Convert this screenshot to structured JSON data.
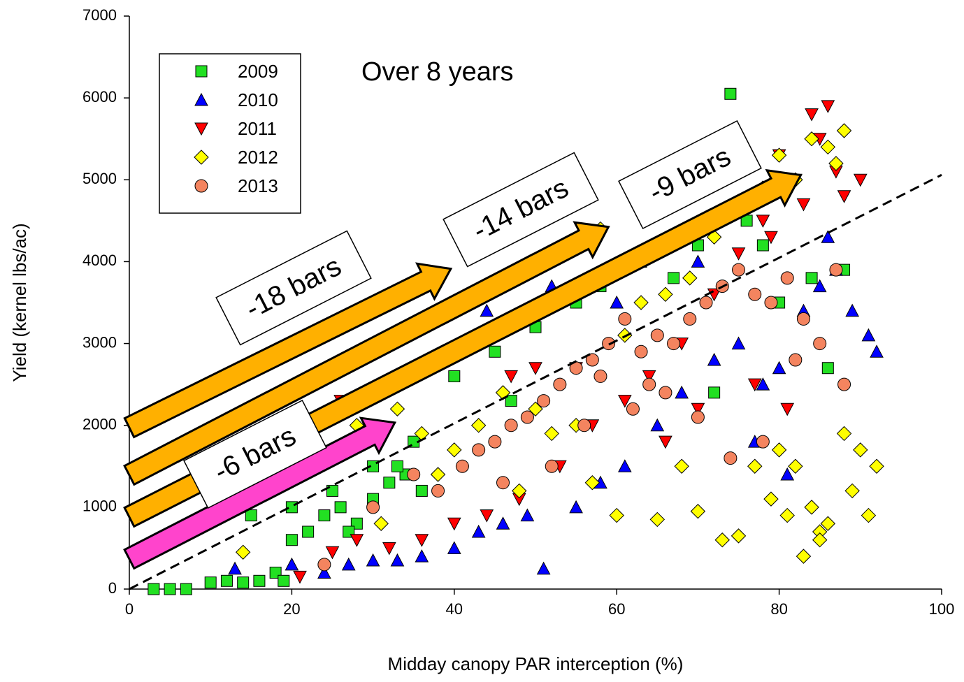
{
  "chart_data": {
    "type": "scatter",
    "xlabel": "Midday canopy PAR interception (%)",
    "ylabel": "Yield (kernel lbs/ac)",
    "annotation": "Over 8 years",
    "arrow_labels": [
      "-18 bars",
      "-14 bars",
      "-9 bars",
      "-6 bars"
    ],
    "xlim": [
      0,
      100
    ],
    "xticks": [
      0,
      20,
      40,
      60,
      80,
      100
    ],
    "ylim": [
      0,
      7000
    ],
    "yticks": [
      0,
      1000,
      2000,
      3000,
      4000,
      5000,
      6000,
      7000
    ],
    "legend": "top-left",
    "trend": {
      "x": [
        0,
        100
      ],
      "y": [
        0,
        5060
      ]
    },
    "series": [
      {
        "name": "2009",
        "color": "#22e022",
        "marker": "square",
        "x": [
          3,
          5,
          7,
          10,
          12,
          14,
          16,
          18,
          19,
          20,
          22,
          24,
          26,
          28,
          30,
          32,
          34,
          36,
          20,
          25,
          30,
          35,
          40,
          45,
          50,
          55,
          58,
          63,
          67,
          70,
          74,
          76,
          78,
          80,
          84,
          86,
          88,
          15,
          27,
          33,
          47,
          72
        ],
        "values": [
          0,
          0,
          0,
          80,
          100,
          80,
          100,
          200,
          100,
          600,
          700,
          900,
          1000,
          800,
          1100,
          1300,
          1400,
          1200,
          1000,
          1200,
          1500,
          1800,
          2600,
          2900,
          3200,
          3500,
          3700,
          4000,
          3800,
          4200,
          6050,
          4500,
          4200,
          3500,
          3800,
          2700,
          3900,
          900,
          700,
          1500,
          2300,
          2400
        ]
      },
      {
        "name": "2010",
        "color": "#0000ff",
        "marker": "triangle-up",
        "x": [
          13,
          20,
          24,
          27,
          30,
          33,
          36,
          40,
          43,
          46,
          49,
          51,
          55,
          58,
          61,
          65,
          68,
          72,
          75,
          78,
          80,
          83,
          85,
          87,
          89,
          91,
          92,
          44,
          52,
          60,
          70,
          77,
          86,
          81
        ],
        "values": [
          250,
          300,
          200,
          300,
          350,
          350,
          400,
          500,
          700,
          800,
          900,
          250,
          1000,
          1300,
          1500,
          2000,
          2400,
          2800,
          3000,
          2500,
          2700,
          3400,
          3700,
          3900,
          3400,
          3100,
          2900,
          3400,
          3700,
          3500,
          4000,
          1800,
          4300,
          1400
        ]
      },
      {
        "name": "2011",
        "color": "#ff0000",
        "marker": "triangle-down",
        "x": [
          21,
          25,
          28,
          32,
          36,
          40,
          44,
          48,
          50,
          53,
          57,
          61,
          64,
          68,
          72,
          75,
          78,
          80,
          82,
          84,
          85,
          86,
          87,
          88,
          90,
          83,
          79,
          77,
          70,
          66,
          26,
          55,
          81,
          47
        ],
        "values": [
          150,
          450,
          600,
          500,
          600,
          800,
          900,
          1100,
          2700,
          1500,
          2000,
          2300,
          2600,
          3000,
          3600,
          4100,
          4500,
          5300,
          5000,
          5800,
          5500,
          5900,
          5100,
          4800,
          5000,
          4700,
          4300,
          2500,
          2200,
          1800,
          2300,
          2700,
          2200,
          2600
        ]
      },
      {
        "name": "2012",
        "color": "#ffff00",
        "marker": "diamond",
        "x": [
          14,
          23,
          28,
          33,
          36,
          40,
          43,
          46,
          50,
          52,
          55,
          58,
          61,
          63,
          66,
          69,
          72,
          75,
          78,
          80,
          82,
          84,
          86,
          88,
          87,
          75,
          73,
          77,
          80,
          82,
          84,
          86,
          88,
          90,
          92,
          85,
          83,
          81,
          89,
          91,
          60,
          65,
          70,
          68,
          57,
          48,
          38,
          31,
          79,
          85
        ],
        "values": [
          450,
          1600,
          2000,
          2200,
          1900,
          1700,
          2000,
          2400,
          2200,
          1900,
          2000,
          4400,
          3100,
          3500,
          3600,
          3800,
          4300,
          4700,
          4900,
          5300,
          5000,
          5500,
          5400,
          5600,
          5200,
          650,
          600,
          1500,
          1700,
          1500,
          1000,
          800,
          1900,
          1700,
          1500,
          700,
          400,
          900,
          1200,
          900,
          900,
          850,
          950,
          1500,
          1300,
          1200,
          1400,
          800,
          1100,
          600
        ]
      },
      {
        "name": "2013",
        "color": "#f4845f",
        "marker": "circle",
        "x": [
          24,
          30,
          35,
          38,
          41,
          43,
          45,
          47,
          49,
          51,
          53,
          55,
          57,
          59,
          61,
          63,
          65,
          67,
          69,
          71,
          73,
          75,
          77,
          79,
          81,
          83,
          85,
          87,
          88,
          62,
          66,
          70,
          74,
          78,
          82,
          56,
          52,
          46,
          58,
          64
        ],
        "values": [
          300,
          1000,
          1400,
          1200,
          1500,
          1700,
          1800,
          2000,
          2100,
          2300,
          2500,
          2700,
          2800,
          3000,
          3300,
          2900,
          3100,
          3000,
          3300,
          3500,
          3700,
          3900,
          3600,
          3500,
          3800,
          3300,
          3000,
          3900,
          2500,
          2200,
          2400,
          2100,
          1600,
          1800,
          2800,
          2000,
          1500,
          1300,
          2600,
          2500
        ]
      }
    ]
  }
}
